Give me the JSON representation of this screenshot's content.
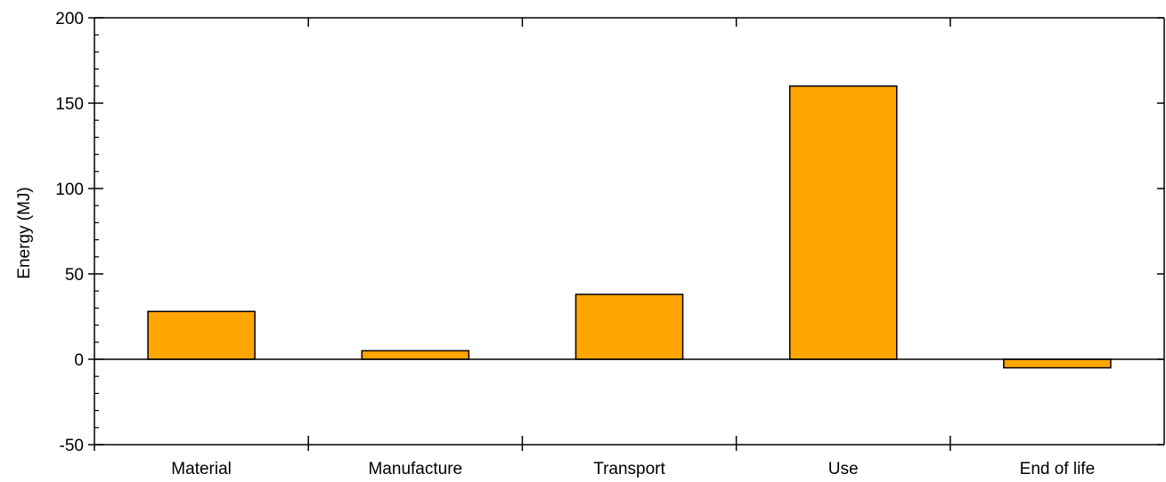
{
  "chart_data": {
    "type": "bar",
    "title": "",
    "xlabel": "",
    "ylabel": "Energy (MJ)",
    "categories": [
      "Material",
      "Manufacture",
      "Transport",
      "Use",
      "End of life"
    ],
    "values": [
      28,
      5,
      38,
      160,
      -5
    ],
    "ylim": [
      -50,
      200
    ],
    "y_major_ticks": [
      -50,
      0,
      50,
      100,
      150,
      200
    ],
    "y_tick_labels": [
      "-50",
      "0",
      "50",
      "100",
      "150",
      "200"
    ],
    "y_minor_step": 10,
    "grid": false,
    "legend": "none",
    "bar_color": "#FFA500",
    "bar_edge_color": "#000000"
  }
}
